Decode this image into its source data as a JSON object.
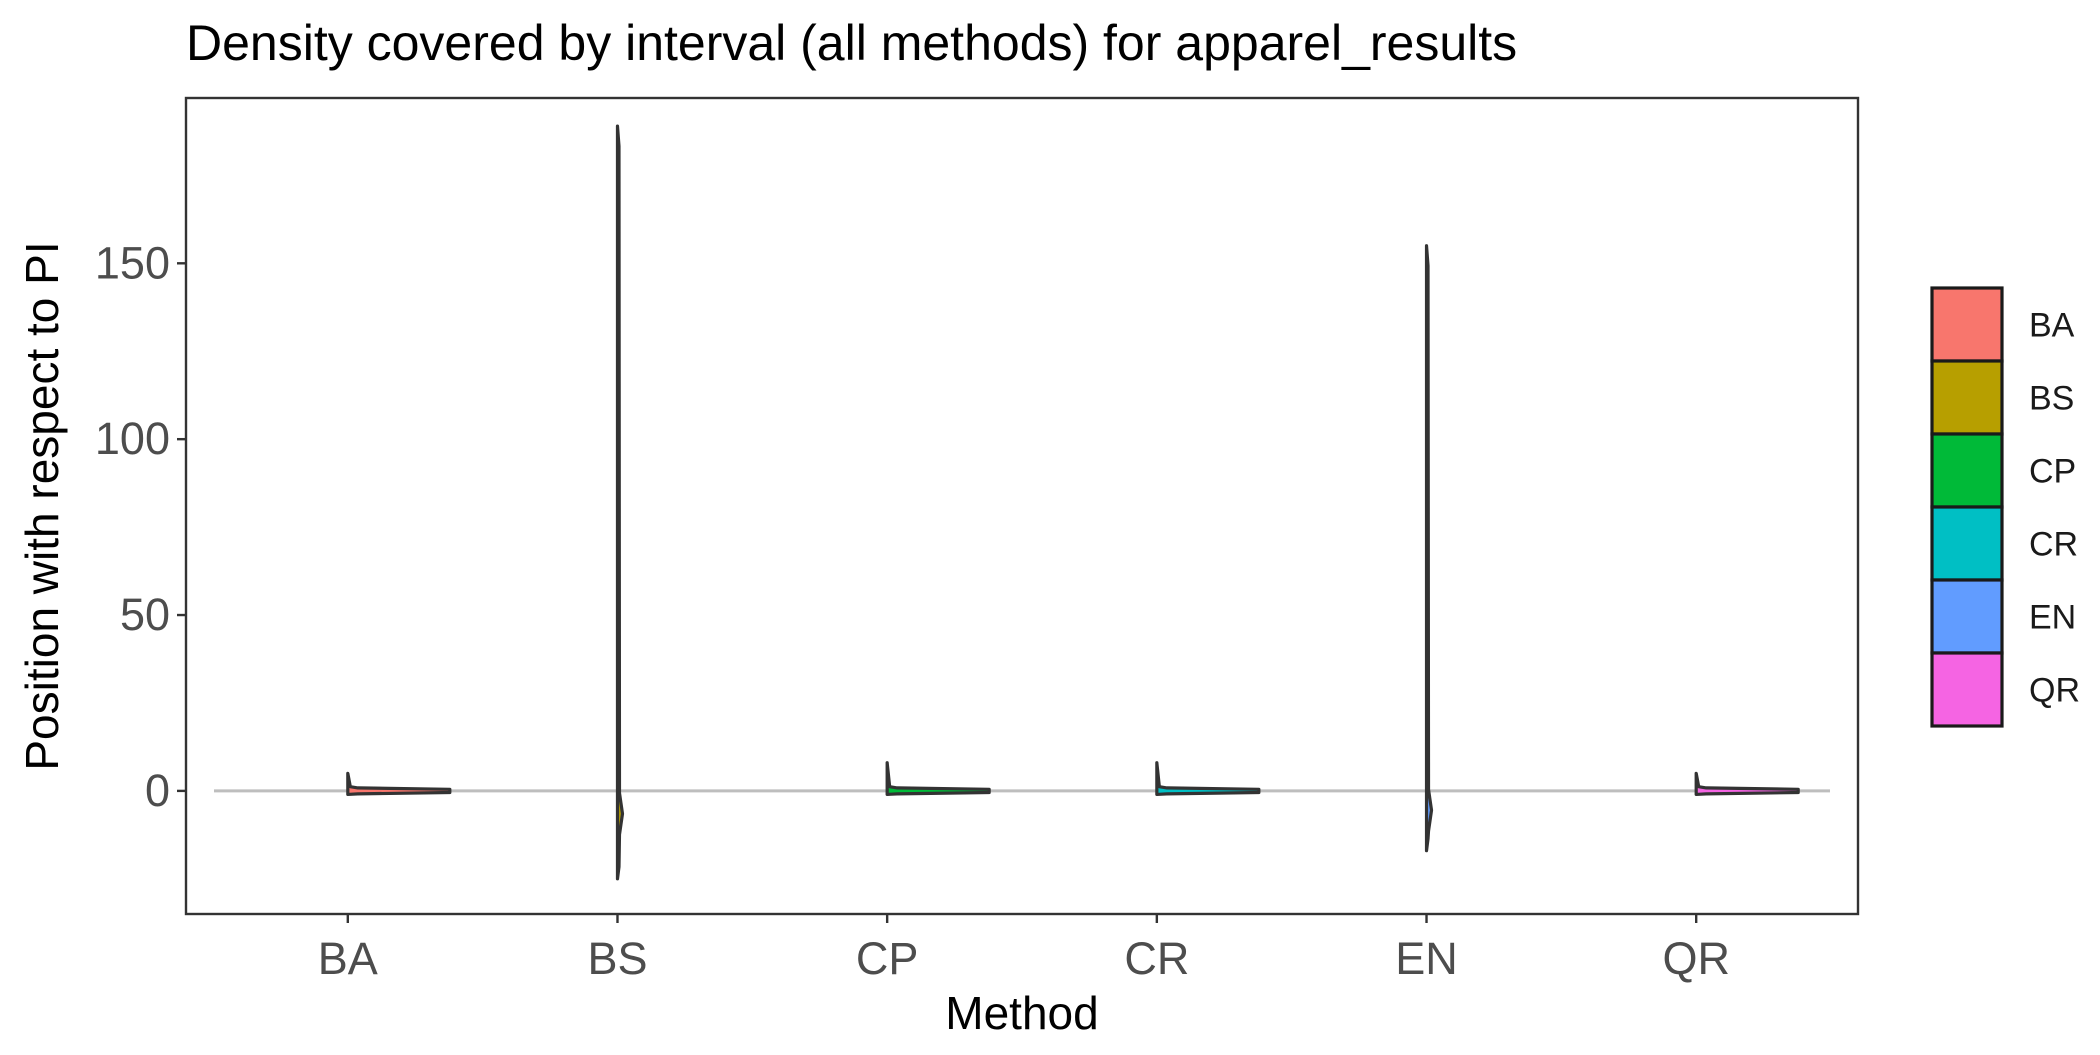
{
  "chart_data": {
    "type": "violin",
    "title": "Density covered by interval (all methods) for apparel_results",
    "xlabel": "Method",
    "ylabel": "Position with respect to PI",
    "categories": [
      "BA",
      "BS",
      "CP",
      "CR",
      "EN",
      "QR"
    ],
    "ylim": [
      -35,
      197
    ],
    "yticks": [
      0,
      50,
      100,
      150
    ],
    "reference_line_y": 0,
    "series": [
      {
        "name": "BA",
        "min": -1,
        "max": 5,
        "bulk_low": -0.6,
        "bulk_high": 0.6,
        "fill": "#F8766D"
      },
      {
        "name": "BS",
        "min": -25,
        "max": 189,
        "bulk_low": -9,
        "bulk_high": -4,
        "fill": "#B79F00"
      },
      {
        "name": "CP",
        "min": -1,
        "max": 8,
        "bulk_low": -0.6,
        "bulk_high": 0.6,
        "fill": "#00BA38"
      },
      {
        "name": "CR",
        "min": -1,
        "max": 8,
        "bulk_low": -0.6,
        "bulk_high": 0.6,
        "fill": "#00BFC4"
      },
      {
        "name": "EN",
        "min": -17,
        "max": 155,
        "bulk_low": -8,
        "bulk_high": -3,
        "fill": "#619CFF"
      },
      {
        "name": "QR",
        "min": -1,
        "max": 5,
        "bulk_low": -0.6,
        "bulk_high": 0.6,
        "fill": "#F564E3"
      }
    ],
    "legend": {
      "position": "right",
      "items": [
        {
          "label": "BA",
          "color": "#F8766D"
        },
        {
          "label": "BS",
          "color": "#B79F00"
        },
        {
          "label": "CP",
          "color": "#00BA38"
        },
        {
          "label": "CR",
          "color": "#00BFC4"
        },
        {
          "label": "EN",
          "color": "#619CFF"
        },
        {
          "label": "QR",
          "color": "#F564E3"
        }
      ]
    }
  }
}
